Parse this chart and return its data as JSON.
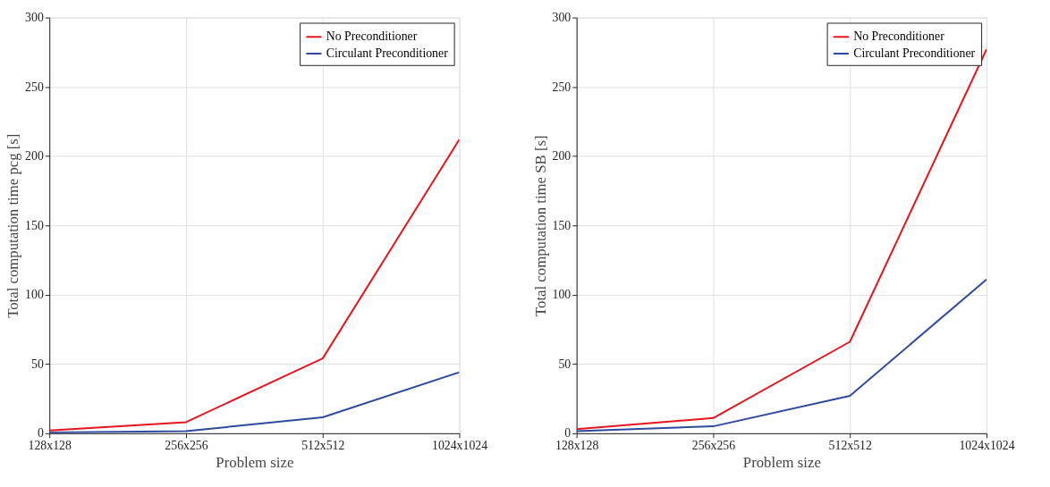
{
  "chart_data": [
    {
      "type": "line",
      "xlabel": "Problem size",
      "ylabel": "Total computation time pcg [s]",
      "categories": [
        "128x128",
        "256x256",
        "512x512",
        "1024x1024"
      ],
      "ylim": [
        0,
        300
      ],
      "yticks": [
        0,
        50,
        100,
        150,
        200,
        250,
        300
      ],
      "grid": true,
      "legend": "top right",
      "marker": "none",
      "line_style": "solid",
      "series": [
        {
          "name": "No Preconditioner",
          "color": "#e8141c",
          "values": [
            2,
            8,
            54,
            212
          ]
        },
        {
          "name": "Circulant Preconditioner",
          "color": "#2e4a9e",
          "values": [
            0.5,
            1.5,
            11.5,
            44
          ]
        }
      ]
    },
    {
      "type": "line",
      "xlabel": "Problem size",
      "ylabel": "Total computation time SB [s]",
      "categories": [
        "128x128",
        "256x256",
        "512x512",
        "1024x1024"
      ],
      "ylim": [
        0,
        300
      ],
      "yticks": [
        0,
        50,
        100,
        150,
        200,
        250,
        300
      ],
      "grid": true,
      "legend": "top right",
      "marker": "none",
      "line_style": "solid",
      "series": [
        {
          "name": "No Preconditioner",
          "color": "#e8141c",
          "values": [
            3,
            11,
            66,
            277
          ]
        },
        {
          "name": "Circulant Preconditioner",
          "color": "#2e4a9e",
          "values": [
            1.5,
            5,
            27,
            111
          ]
        }
      ]
    }
  ]
}
